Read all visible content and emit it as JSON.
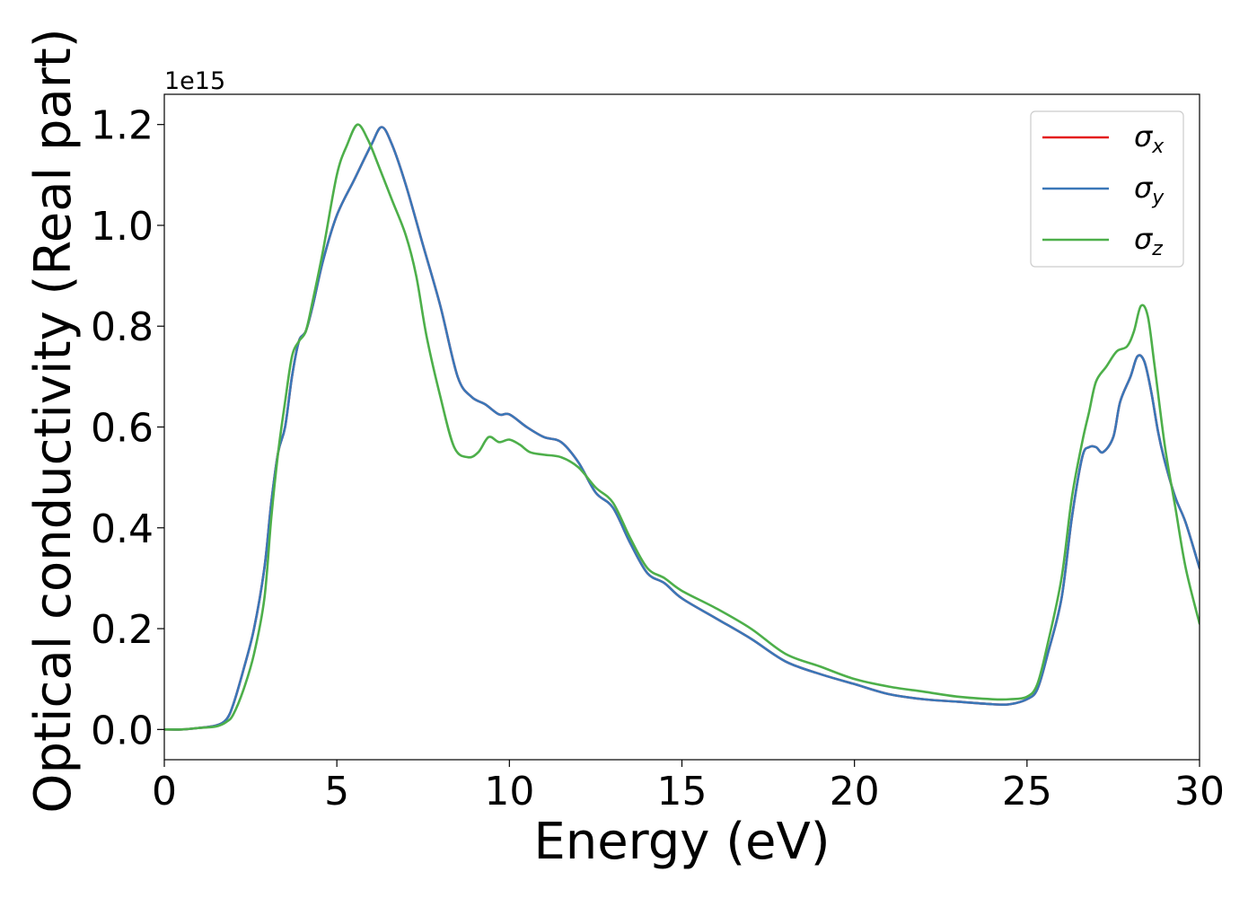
{
  "chart_data": {
    "type": "line",
    "xlabel": "Energy (eV)",
    "ylabel": "Optical conductivity (Real part)",
    "y_offset_label": "1e15",
    "xlim": [
      0,
      30
    ],
    "ylim": [
      -0.06,
      1.26
    ],
    "x_ticks": [
      0,
      5,
      10,
      15,
      20,
      25,
      30
    ],
    "x_tick_labels": [
      "0",
      "5",
      "10",
      "15",
      "20",
      "25",
      "30"
    ],
    "y_ticks": [
      0.0,
      0.2,
      0.4,
      0.6,
      0.8,
      1.0,
      1.2
    ],
    "y_tick_labels": [
      "0.0",
      "0.2",
      "0.4",
      "0.6",
      "0.8",
      "1.0",
      "1.2"
    ],
    "grid": false,
    "legend_position": "top-right",
    "series": [
      {
        "name": "σx",
        "symbol": "σ",
        "subscript": "x",
        "color": "#e41a1c",
        "x": [
          0,
          0.5,
          1.0,
          1.5,
          1.8,
          2.0,
          2.3,
          2.6,
          2.9,
          3.1,
          3.3,
          3.5,
          3.7,
          3.9,
          4.1,
          4.3,
          4.6,
          5.0,
          5.5,
          6.0,
          6.3,
          6.6,
          7.0,
          7.5,
          8.0,
          8.5,
          8.9,
          9.3,
          9.7,
          10.0,
          10.5,
          11.0,
          11.5,
          12.0,
          12.5,
          13.0,
          13.5,
          14.0,
          14.5,
          15.0,
          16.0,
          17.0,
          18.0,
          19.0,
          20.0,
          21.0,
          22.0,
          23.0,
          24.0,
          24.5,
          25.0,
          25.3,
          25.6,
          26.0,
          26.3,
          26.6,
          26.8,
          27.0,
          27.2,
          27.5,
          27.7,
          28.0,
          28.2,
          28.4,
          28.6,
          28.8,
          29.0,
          29.3,
          29.6,
          30.0
        ],
        "values": [
          0.0,
          0.0,
          0.003,
          0.008,
          0.02,
          0.05,
          0.12,
          0.2,
          0.32,
          0.45,
          0.55,
          0.6,
          0.7,
          0.77,
          0.79,
          0.84,
          0.93,
          1.02,
          1.09,
          1.16,
          1.195,
          1.16,
          1.08,
          0.96,
          0.84,
          0.7,
          0.66,
          0.645,
          0.625,
          0.625,
          0.6,
          0.58,
          0.57,
          0.53,
          0.47,
          0.44,
          0.37,
          0.31,
          0.29,
          0.26,
          0.22,
          0.18,
          0.135,
          0.11,
          0.09,
          0.07,
          0.06,
          0.055,
          0.05,
          0.05,
          0.06,
          0.08,
          0.15,
          0.26,
          0.42,
          0.54,
          0.56,
          0.56,
          0.55,
          0.58,
          0.65,
          0.7,
          0.74,
          0.73,
          0.67,
          0.59,
          0.53,
          0.46,
          0.41,
          0.32
        ]
      },
      {
        "name": "σy",
        "symbol": "σ",
        "subscript": "y",
        "color": "#3a77b8",
        "x": [
          0,
          0.5,
          1.0,
          1.5,
          1.8,
          2.0,
          2.3,
          2.6,
          2.9,
          3.1,
          3.3,
          3.5,
          3.7,
          3.9,
          4.1,
          4.3,
          4.6,
          5.0,
          5.5,
          6.0,
          6.3,
          6.6,
          7.0,
          7.5,
          8.0,
          8.5,
          8.9,
          9.3,
          9.7,
          10.0,
          10.5,
          11.0,
          11.5,
          12.0,
          12.5,
          13.0,
          13.5,
          14.0,
          14.5,
          15.0,
          16.0,
          17.0,
          18.0,
          19.0,
          20.0,
          21.0,
          22.0,
          23.0,
          24.0,
          24.5,
          25.0,
          25.3,
          25.6,
          26.0,
          26.3,
          26.6,
          26.8,
          27.0,
          27.2,
          27.5,
          27.7,
          28.0,
          28.2,
          28.4,
          28.6,
          28.8,
          29.0,
          29.3,
          29.6,
          30.0
        ],
        "values": [
          0.0,
          0.0,
          0.003,
          0.008,
          0.02,
          0.05,
          0.12,
          0.2,
          0.32,
          0.45,
          0.55,
          0.6,
          0.7,
          0.77,
          0.79,
          0.84,
          0.93,
          1.02,
          1.09,
          1.16,
          1.195,
          1.16,
          1.08,
          0.96,
          0.84,
          0.7,
          0.66,
          0.645,
          0.625,
          0.625,
          0.6,
          0.58,
          0.57,
          0.53,
          0.47,
          0.44,
          0.37,
          0.31,
          0.29,
          0.26,
          0.22,
          0.18,
          0.135,
          0.11,
          0.09,
          0.07,
          0.06,
          0.055,
          0.05,
          0.05,
          0.06,
          0.08,
          0.15,
          0.26,
          0.42,
          0.54,
          0.56,
          0.56,
          0.55,
          0.58,
          0.65,
          0.7,
          0.74,
          0.73,
          0.67,
          0.59,
          0.53,
          0.46,
          0.41,
          0.32
        ]
      },
      {
        "name": "σz",
        "symbol": "σ",
        "subscript": "z",
        "color": "#4daf4a",
        "x": [
          0,
          0.5,
          1.0,
          1.5,
          1.8,
          2.0,
          2.3,
          2.6,
          2.9,
          3.1,
          3.3,
          3.5,
          3.7,
          3.9,
          4.1,
          4.3,
          4.6,
          5.0,
          5.3,
          5.6,
          5.9,
          6.2,
          6.6,
          7.0,
          7.3,
          7.6,
          8.0,
          8.4,
          8.8,
          9.1,
          9.4,
          9.7,
          10.0,
          10.3,
          10.6,
          11.0,
          11.5,
          12.0,
          12.5,
          13.0,
          13.5,
          14.0,
          14.5,
          15.0,
          16.0,
          17.0,
          18.0,
          19.0,
          20.0,
          21.0,
          22.0,
          23.0,
          24.0,
          24.5,
          25.0,
          25.3,
          25.6,
          26.0,
          26.3,
          26.6,
          26.8,
          27.0,
          27.3,
          27.6,
          27.9,
          28.1,
          28.3,
          28.5,
          28.7,
          29.0,
          29.3,
          29.6,
          30.0
        ],
        "values": [
          0.0,
          0.0,
          0.003,
          0.006,
          0.015,
          0.03,
          0.08,
          0.15,
          0.26,
          0.42,
          0.55,
          0.65,
          0.74,
          0.77,
          0.79,
          0.85,
          0.95,
          1.1,
          1.16,
          1.2,
          1.17,
          1.12,
          1.05,
          0.98,
          0.9,
          0.78,
          0.66,
          0.56,
          0.54,
          0.55,
          0.58,
          0.57,
          0.575,
          0.565,
          0.55,
          0.545,
          0.54,
          0.52,
          0.48,
          0.45,
          0.38,
          0.32,
          0.3,
          0.275,
          0.24,
          0.2,
          0.15,
          0.125,
          0.1,
          0.085,
          0.075,
          0.065,
          0.06,
          0.06,
          0.065,
          0.09,
          0.17,
          0.3,
          0.46,
          0.57,
          0.63,
          0.69,
          0.72,
          0.75,
          0.76,
          0.79,
          0.84,
          0.82,
          0.72,
          0.56,
          0.44,
          0.32,
          0.21
        ]
      }
    ]
  }
}
